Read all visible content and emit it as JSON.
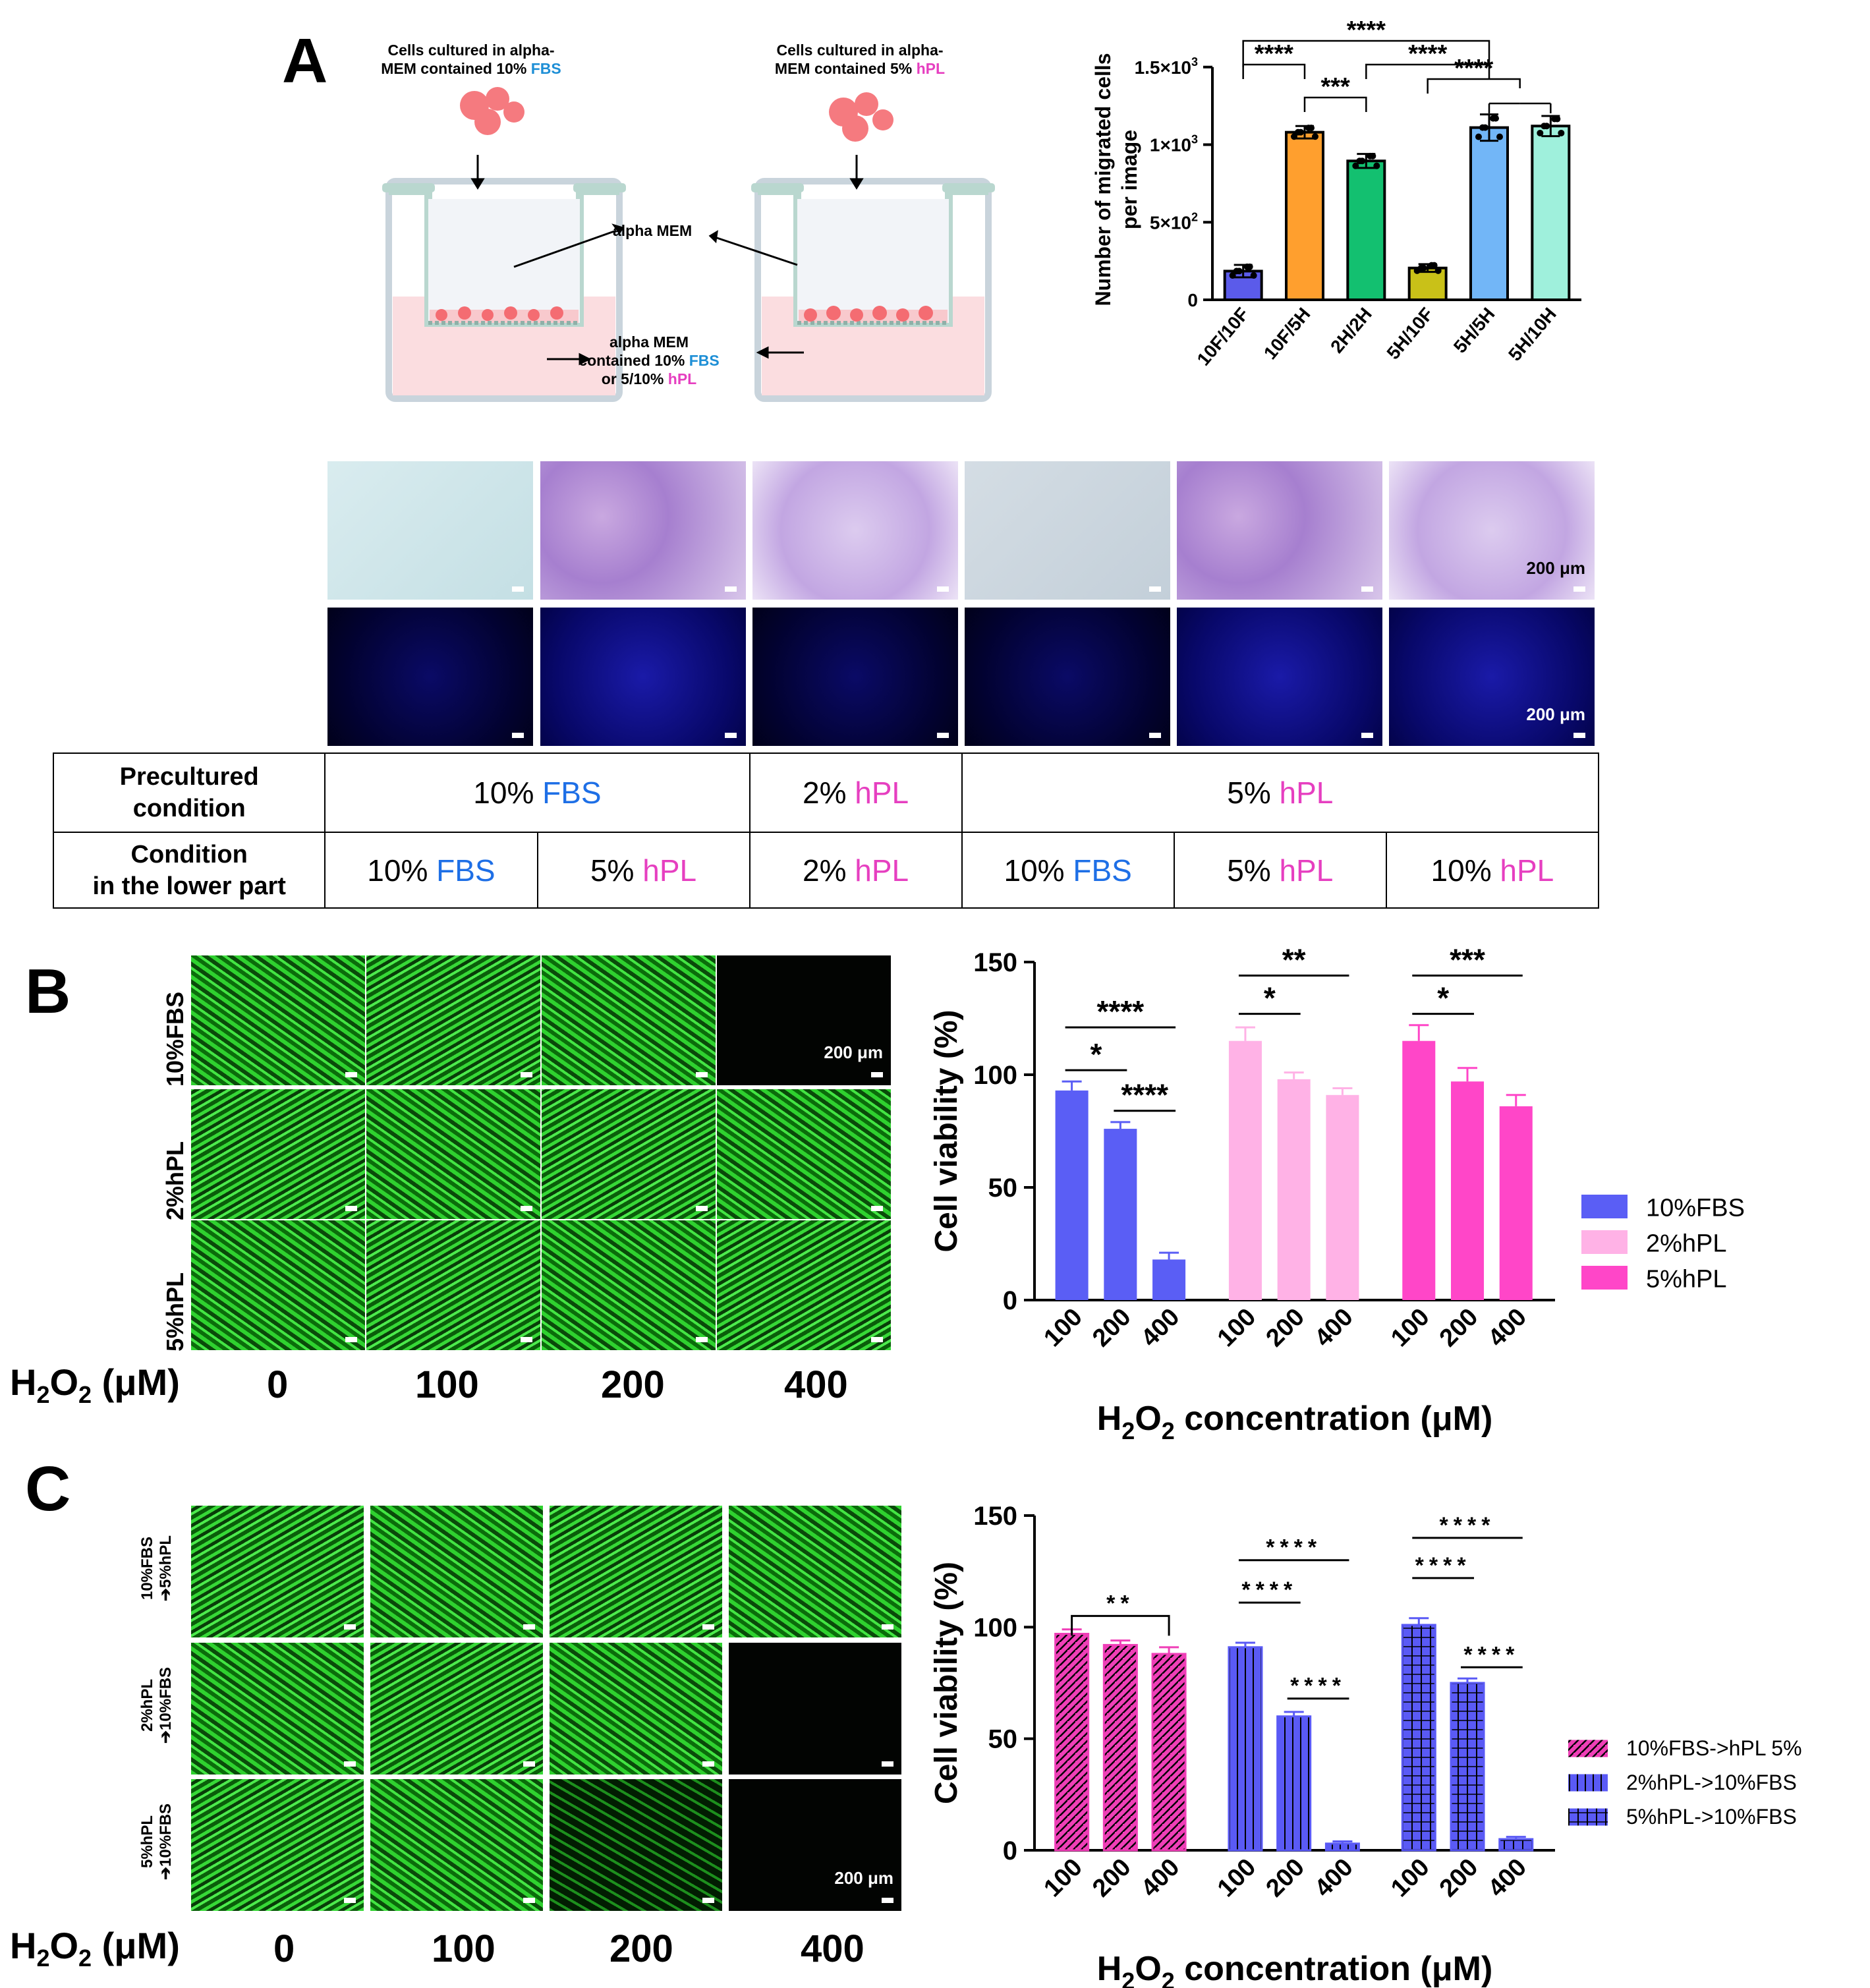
{
  "panels": {
    "a": "A",
    "b": "B",
    "c": "C"
  },
  "schematic": {
    "left_label_1": "Cells cultured in alpha-",
    "left_label_2": "MEM contained 10% ",
    "left_label_2_highlight": "FBS",
    "right_label_1": "Cells cultured in alpha-",
    "right_label_2": "MEM contained 5% ",
    "right_label_2_highlight": "hPL",
    "middle_upper": "alpha MEM",
    "middle_lower_1": "alpha MEM",
    "middle_lower_2": "contained 10% ",
    "middle_lower_2_highlight": "FBS",
    "middle_lower_3": "or 5/10% ",
    "middle_lower_3_highlight": "hPL"
  },
  "panel_a_images": {
    "scale_label": "200 μm"
  },
  "condition_table": {
    "row1_header_1": "Precultured",
    "row1_header_2": "condition",
    "row2_header_1": "Condition",
    "row2_header_2": "in the lower part",
    "row1": [
      {
        "pct": "10% ",
        "medium": "FBS"
      },
      {
        "pct": "2% ",
        "medium": "hPL"
      },
      {
        "pct": "5% ",
        "medium": "hPL"
      }
    ],
    "row2": [
      {
        "pct": "10% ",
        "medium": "FBS"
      },
      {
        "pct": "5% ",
        "medium": "hPL"
      },
      {
        "pct": "2% ",
        "medium": "hPL"
      },
      {
        "pct": "10% ",
        "medium": "FBS"
      },
      {
        "pct": "5% ",
        "medium": "hPL"
      },
      {
        "pct": "10% ",
        "medium": "hPL"
      }
    ]
  },
  "panel_b_images": {
    "rows": [
      "10%FBS",
      "2%hPL",
      "5%hPL"
    ],
    "dose_axis_label_main": "H",
    "dose_axis_label_sub": "2",
    "dose_axis_label_main2": "O",
    "dose_axis_label_sub2": "2",
    "dose_axis_label_unit": " (μM)",
    "doses": [
      "0",
      "100",
      "200",
      "400"
    ],
    "scale_label": "200 μm"
  },
  "panel_c_images": {
    "rows": [
      {
        "l1": "10%FBS",
        "l2": "➔5%hPL"
      },
      {
        "l1": "2%hPL",
        "l2": "➔10%FBS"
      },
      {
        "l1": "5%hPL",
        "l2": "➔10%FBS"
      }
    ],
    "dose_axis_label_main": "H",
    "dose_axis_label_sub": "2",
    "dose_axis_label_main2": "O",
    "dose_axis_label_sub2": "2",
    "dose_axis_label_unit": " (μM)",
    "doses": [
      "0",
      "100",
      "200",
      "400"
    ],
    "scale_label": "200 μm"
  },
  "chart_data": [
    {
      "id": "A",
      "type": "bar",
      "ylabel_1": "Number of migrated cells",
      "ylabel_2": "per image",
      "categories": [
        "10F/10F",
        "10F/5H",
        "2H/2H",
        "5H/10F",
        "5H/5H",
        "5H/10H"
      ],
      "values": [
        185,
        1080,
        895,
        205,
        1110,
        1120
      ],
      "errors": [
        40,
        40,
        45,
        25,
        85,
        65
      ],
      "colors": [
        "#5b5bea",
        "#ff9f2e",
        "#13c070",
        "#c9c118",
        "#72b6f7",
        "#9ff0dc"
      ],
      "yticks": [
        0,
        500,
        1000,
        1500
      ],
      "ytick_labels": [
        "0",
        "5×10",
        "1×10",
        "1.5×10"
      ],
      "ytick_exps": [
        "",
        "2",
        "3",
        "3"
      ],
      "ylim": [
        0,
        1550
      ],
      "significance": [
        {
          "label": "****",
          "from": 0,
          "to": 4
        },
        {
          "label": "****",
          "from": 0,
          "to": 1
        },
        {
          "label": "***",
          "from": 1,
          "to": 2
        },
        {
          "label": "****",
          "from": 2,
          "to": 4
        },
        {
          "label": "****",
          "from": 3,
          "to": 4.5
        }
      ]
    },
    {
      "id": "B",
      "type": "bar",
      "ylabel": "Cell viability (%)",
      "xlabel_main": "H",
      "xlabel_sub1": "2",
      "xlabel_mid": "O",
      "xlabel_sub2": "2",
      "xlabel_rest": " concentration (μM)",
      "groups": [
        "100",
        "200",
        "400"
      ],
      "yticks": [
        0,
        50,
        100,
        150
      ],
      "ylim": [
        0,
        150
      ],
      "series": [
        {
          "name": "10%FBS",
          "color": "#5a5ef5",
          "values": [
            93,
            76,
            18
          ],
          "errors": [
            4,
            3,
            3
          ]
        },
        {
          "name": "2%hPL",
          "color": "#ffb2e6",
          "values": [
            115,
            98,
            91
          ],
          "errors": [
            6,
            3,
            3
          ]
        },
        {
          "name": "5%hPL",
          "color": "#ff46c8",
          "values": [
            115,
            97,
            86
          ],
          "errors": [
            7,
            6,
            5
          ]
        }
      ],
      "significance": [
        {
          "label": "****",
          "series": 0,
          "from": 0,
          "to": 2,
          "y": 121
        },
        {
          "label": "*",
          "series": 0,
          "from": 0,
          "to": 1,
          "y": 102
        },
        {
          "label": "****",
          "series": 0,
          "from": 1,
          "to": 2,
          "y": 84
        },
        {
          "label": "**",
          "series": 1,
          "from": 0,
          "to": 2,
          "y": 144
        },
        {
          "label": "*",
          "series": 1,
          "from": 0,
          "to": 1,
          "y": 127
        },
        {
          "label": "***",
          "series": 2,
          "from": 0,
          "to": 2,
          "y": 144
        },
        {
          "label": "*",
          "series": 2,
          "from": 0,
          "to": 1,
          "y": 127
        }
      ]
    },
    {
      "id": "C",
      "type": "bar",
      "ylabel": "Cell viability (%)",
      "xlabel_main": "H",
      "xlabel_sub1": "2",
      "xlabel_mid": "O",
      "xlabel_sub2": "2",
      "xlabel_rest": " concentration (μM)",
      "groups": [
        "100",
        "200",
        "400"
      ],
      "yticks": [
        0,
        50,
        100,
        150
      ],
      "ylim": [
        0,
        150
      ],
      "series": [
        {
          "name": "10%FBS->hPL 5%",
          "color": "#ef3fb7",
          "pattern": "diag",
          "values": [
            97,
            92,
            88
          ],
          "errors": [
            2,
            2,
            3
          ]
        },
        {
          "name": "2%hPL->10%FBS",
          "color": "#5a5af5",
          "pattern": "vert",
          "values": [
            91,
            60,
            3
          ],
          "errors": [
            2,
            2,
            1
          ]
        },
        {
          "name": "5%hPL->10%FBS",
          "color": "#5a5af5",
          "pattern": "grid",
          "values": [
            101,
            75,
            5
          ],
          "errors": [
            3,
            2,
            1
          ]
        }
      ],
      "significance": [
        {
          "label": "**",
          "series": 0,
          "from": 0,
          "to": 2,
          "y": 105,
          "bracket": true
        },
        {
          "label": "****",
          "series": 1,
          "from": 0,
          "to": 2,
          "y": 130
        },
        {
          "label": "****",
          "series": 1,
          "from": 0,
          "to": 1,
          "y": 111
        },
        {
          "label": "****",
          "series": 1,
          "from": 1,
          "to": 2,
          "y": 68
        },
        {
          "label": "****",
          "series": 2,
          "from": 0,
          "to": 2,
          "y": 140
        },
        {
          "label": "****",
          "series": 2,
          "from": 0,
          "to": 1,
          "y": 122
        },
        {
          "label": "****",
          "series": 2,
          "from": 1,
          "to": 2,
          "y": 82
        }
      ]
    }
  ]
}
